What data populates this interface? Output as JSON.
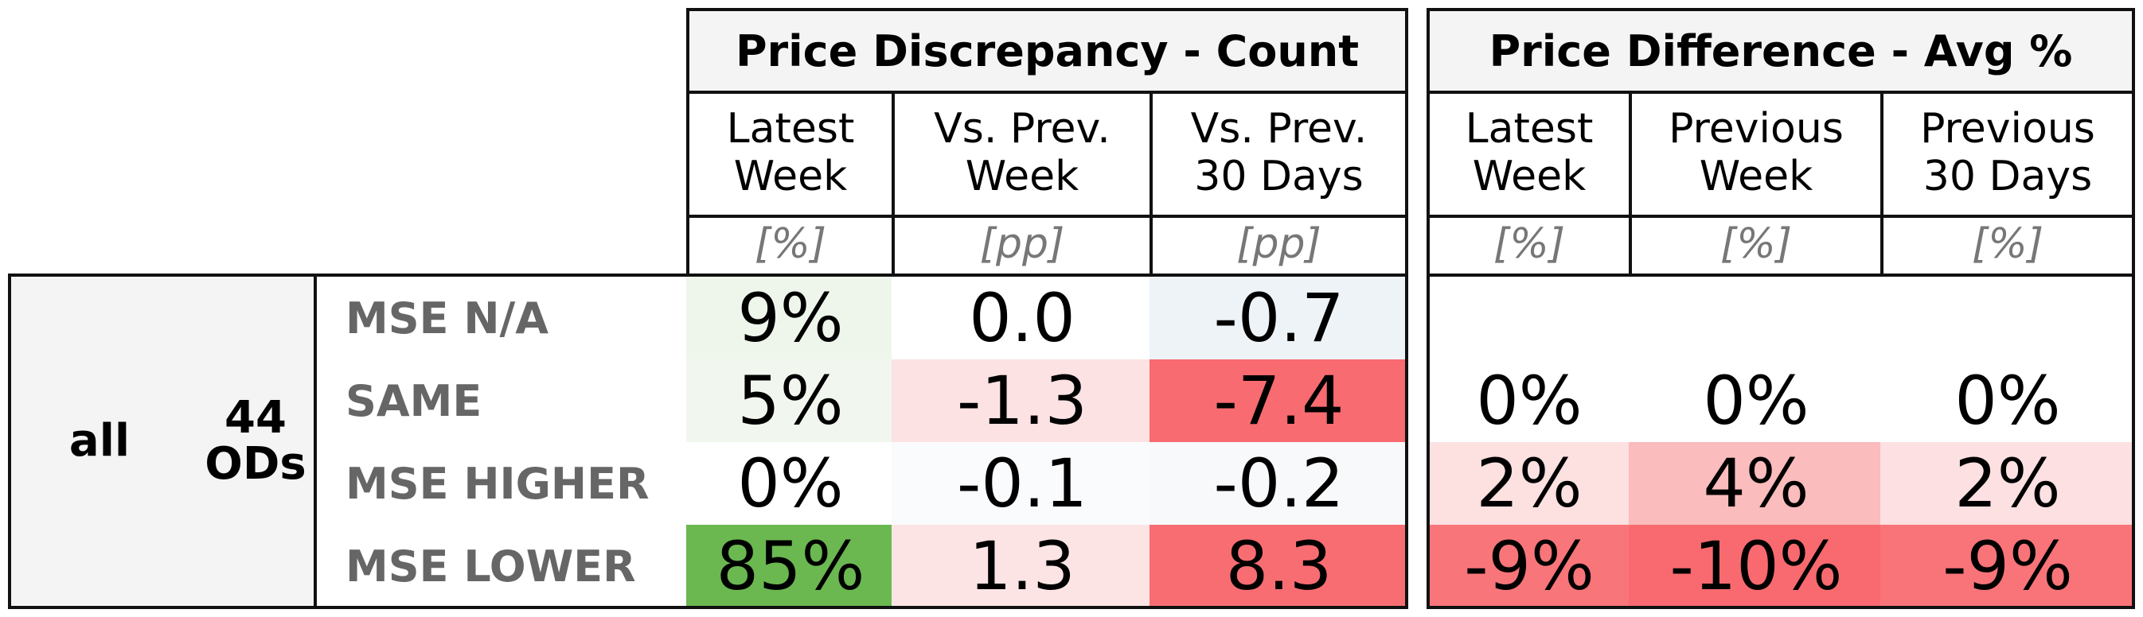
{
  "chart_data": {
    "type": "table",
    "segment": {
      "group": "all",
      "od_count": "44\nODs"
    },
    "groups": [
      {
        "title": "Price Discrepancy - Count",
        "columns": [
          {
            "label": "Latest\nWeek",
            "unit": "[%]"
          },
          {
            "label": "Vs. Prev.\nWeek",
            "unit": "[pp]"
          },
          {
            "label": "Vs. Prev.\n30 Days",
            "unit": "[pp]"
          }
        ]
      },
      {
        "title": "Price Difference - Avg %",
        "columns": [
          {
            "label": "Latest\nWeek",
            "unit": "[%]"
          },
          {
            "label": "Previous\nWeek",
            "unit": "[%]"
          },
          {
            "label": "Previous\n30 Days",
            "unit": "[%]"
          }
        ]
      }
    ],
    "rows": [
      {
        "label": "MSE N/A",
        "values": [
          "9%",
          "0.0",
          "-0.7",
          "",
          "",
          ""
        ],
        "colors": [
          "#eef6ec",
          "#ffffff",
          "#eef3f8",
          "#ffffff",
          "#ffffff",
          "#ffffff"
        ]
      },
      {
        "label": "SAME",
        "values": [
          "5%",
          "-1.3",
          "-7.4",
          "0%",
          "0%",
          "0%"
        ],
        "colors": [
          "#f1f7ef",
          "#fce2e3",
          "#f86b70",
          "#ffffff",
          "#ffffff",
          "#ffffff"
        ]
      },
      {
        "label": "MSE HIGHER",
        "values": [
          "0%",
          "-0.1",
          "-0.2",
          "2%",
          "4%",
          "2%"
        ],
        "colors": [
          "#ffffff",
          "#fafbfd",
          "#f8f9fb",
          "#fde0e0",
          "#fabcbd",
          "#fde0e1"
        ]
      },
      {
        "label": "MSE LOWER",
        "values": [
          "85%",
          "1.3",
          "8.3",
          "-9%",
          "-10%",
          "-9%"
        ],
        "colors": [
          "#6bb851",
          "#fce4e5",
          "#f86d72",
          "#f87579",
          "#f86a6f",
          "#f87479"
        ]
      }
    ]
  }
}
